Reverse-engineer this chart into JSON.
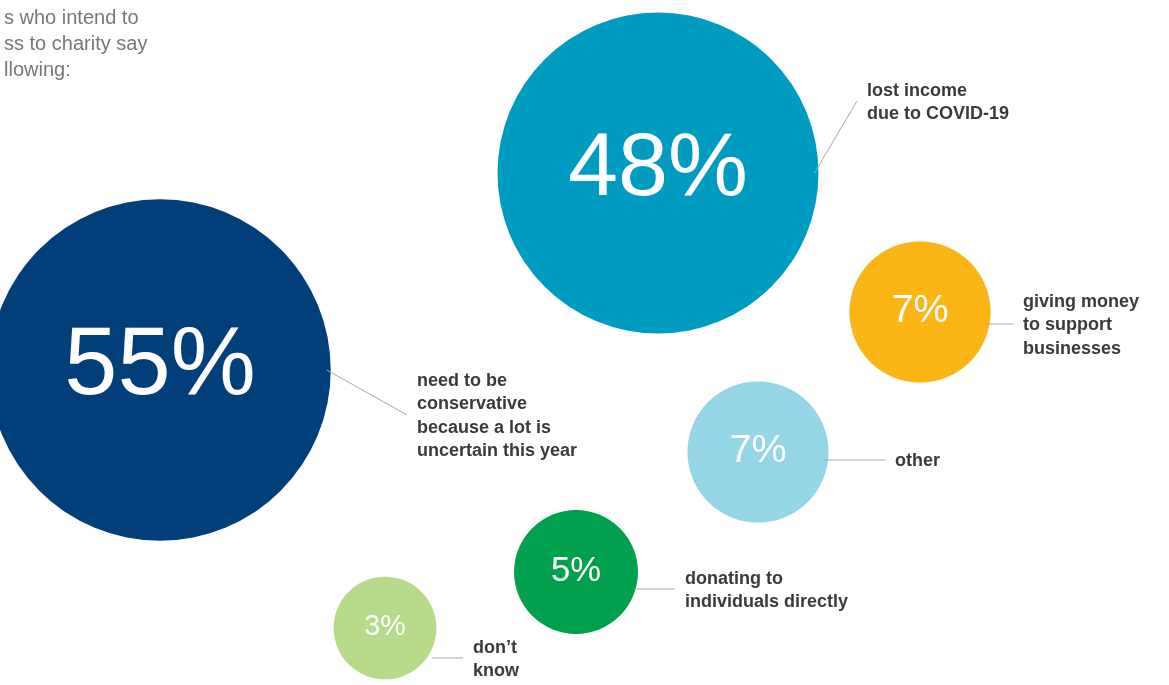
{
  "chart_data": {
    "type": "other",
    "title": "s who intend to\nss to charity say\nllowing:",
    "categories": [
      "need to be\nconservative\nbecause a lot is\nuncertain this year",
      "lost income\ndue to COVID-19",
      "giving money\nto support\nbusinesses",
      "other",
      "donating to\nindividuals directly",
      "don’t\nknow"
    ],
    "values": [
      55,
      48,
      7,
      7,
      5,
      3
    ],
    "value_labels": [
      "55%",
      "48%",
      "7%",
      "7%",
      "5%",
      "3%"
    ],
    "colors": [
      "#003f7a",
      "#009bc0",
      "#fbb616",
      "#94d5e8",
      "#00a04c",
      "#b7d98a"
    ]
  }
}
